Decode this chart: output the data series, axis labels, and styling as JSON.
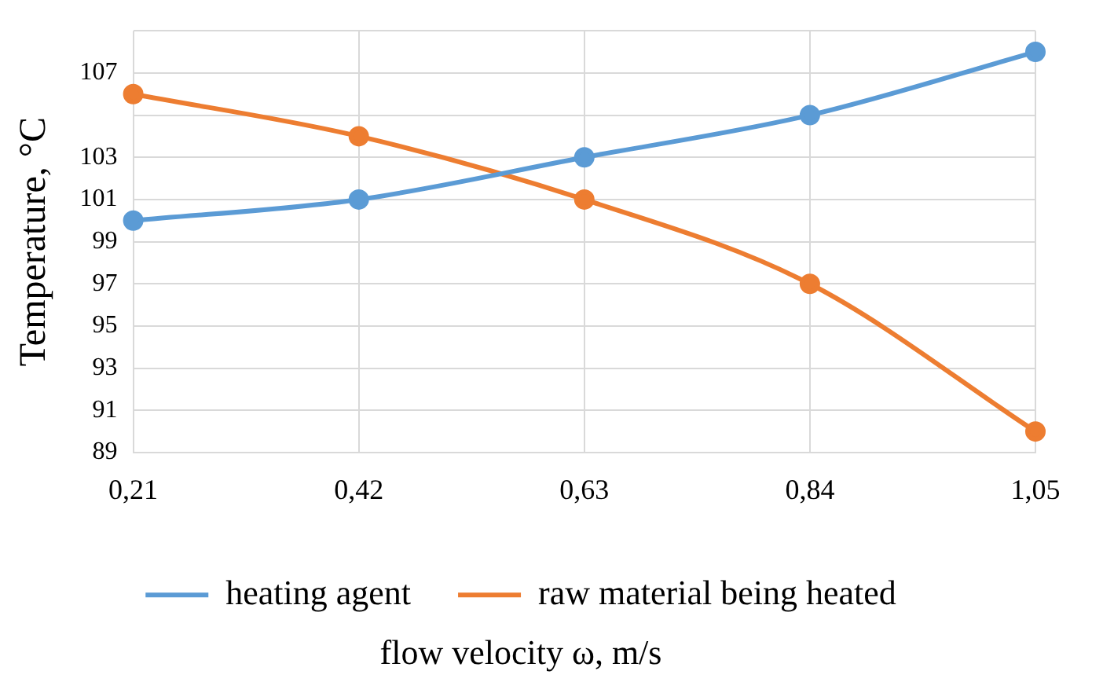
{
  "chart_data": {
    "type": "line",
    "xlabel": "flow velocity ω, m/s",
    "ylabel": "Temperature, °C",
    "categories": [
      "0,21",
      "0,42",
      "0,63",
      "0,84",
      "1,05"
    ],
    "series": [
      {
        "name": "heating agent",
        "color": "#5b9bd5",
        "values": [
          100,
          101,
          103,
          105,
          108
        ]
      },
      {
        "name": "raw material being heated",
        "color": "#ed7d31",
        "values": [
          106,
          104,
          101,
          97,
          90
        ]
      }
    ],
    "ylim": [
      89,
      109
    ],
    "yticks": [
      89,
      91,
      93,
      95,
      97,
      99,
      101,
      103,
      {
        "value": 105,
        "label": null
      },
      107,
      {
        "value": 109,
        "label": null
      }
    ],
    "grid": true,
    "legend": "bottom",
    "marker": "circle",
    "line_style": "solid"
  }
}
